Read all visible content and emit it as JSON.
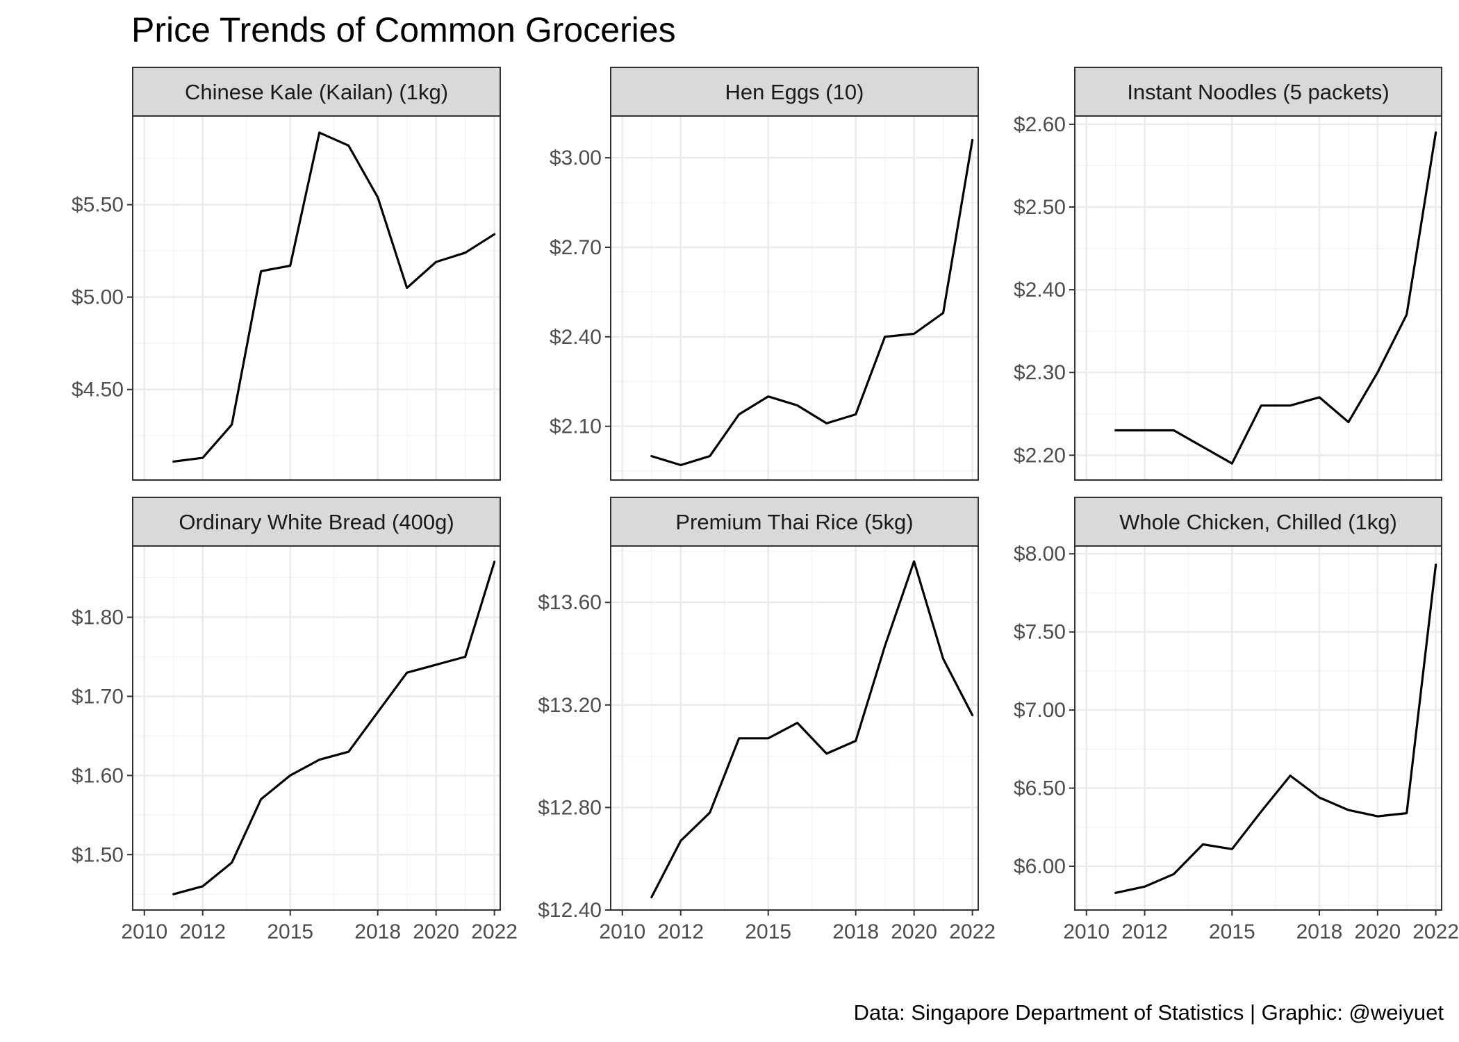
{
  "page": {
    "title": "Price Trends of Common Groceries",
    "caption": "Data: Singapore Department of Statistics | Graphic: @weiyuet"
  },
  "chart_data": {
    "type": "line",
    "facets": "3x2 grid, free y scales, shared x scale",
    "x_ticks": [
      2010,
      2012,
      2015,
      2018,
      2020,
      2022
    ],
    "x_tick_labels": [
      "2010",
      "2012",
      "2015",
      "2018",
      "2020",
      "2022"
    ],
    "xlim": [
      2009.6,
      2022.2
    ],
    "grid": true,
    "line_color": "#000000",
    "strip_color": "#d9d9d9",
    "panels": [
      {
        "name": "Chinese Kale (Kailan) (1kg)",
        "ylim": [
          4.01,
          5.98
        ],
        "y_ticks": [
          4.5,
          5.0,
          5.5
        ],
        "y_tick_labels": [
          "$4.50",
          "$5.00",
          "$5.50"
        ],
        "x": [
          2011,
          2012,
          2013,
          2014,
          2015,
          2016,
          2017,
          2018,
          2019,
          2020,
          2021,
          2022
        ],
        "y": [
          4.11,
          4.13,
          4.31,
          5.14,
          5.17,
          5.89,
          5.82,
          5.54,
          5.05,
          5.19,
          5.24,
          5.34
        ]
      },
      {
        "name": "Hen Eggs (10)",
        "ylim": [
          1.92,
          3.14
        ],
        "y_ticks": [
          2.1,
          2.4,
          2.7,
          3.0
        ],
        "y_tick_labels": [
          "$2.10",
          "$2.40",
          "$2.70",
          "$3.00"
        ],
        "x": [
          2011,
          2012,
          2013,
          2014,
          2015,
          2016,
          2017,
          2018,
          2019,
          2020,
          2021,
          2022
        ],
        "y": [
          2.0,
          1.97,
          2.0,
          2.14,
          2.2,
          2.17,
          2.11,
          2.14,
          2.4,
          2.41,
          2.48,
          3.06
        ]
      },
      {
        "name": "Instant Noodles (5 packets)",
        "ylim": [
          2.17,
          2.61
        ],
        "y_ticks": [
          2.2,
          2.3,
          2.4,
          2.5,
          2.6
        ],
        "y_tick_labels": [
          "$2.20",
          "$2.30",
          "$2.40",
          "$2.50",
          "$2.60"
        ],
        "x": [
          2011,
          2012,
          2013,
          2014,
          2015,
          2016,
          2017,
          2018,
          2019,
          2020,
          2021,
          2022
        ],
        "y": [
          2.23,
          2.23,
          2.23,
          2.21,
          2.19,
          2.26,
          2.26,
          2.27,
          2.24,
          2.3,
          2.37,
          2.59
        ]
      },
      {
        "name": "Ordinary White Bread (400g)",
        "ylim": [
          1.43,
          1.89
        ],
        "y_ticks": [
          1.5,
          1.6,
          1.7,
          1.8
        ],
        "y_tick_labels": [
          "$1.50",
          "$1.60",
          "$1.70",
          "$1.80"
        ],
        "x": [
          2011,
          2012,
          2013,
          2014,
          2015,
          2016,
          2017,
          2018,
          2019,
          2020,
          2021,
          2022
        ],
        "y": [
          1.45,
          1.46,
          1.49,
          1.57,
          1.6,
          1.62,
          1.63,
          1.68,
          1.73,
          1.74,
          1.75,
          1.87
        ]
      },
      {
        "name": "Premium Thai Rice (5kg)",
        "ylim": [
          12.4,
          13.82
        ],
        "y_ticks": [
          12.4,
          12.8,
          13.2,
          13.6
        ],
        "y_tick_labels": [
          "$12.40",
          "$12.80",
          "$13.20",
          "$13.60"
        ],
        "x": [
          2011,
          2012,
          2013,
          2014,
          2015,
          2016,
          2017,
          2018,
          2019,
          2020,
          2021,
          2022
        ],
        "y": [
          12.45,
          12.67,
          12.78,
          13.07,
          13.07,
          13.13,
          13.01,
          13.06,
          13.43,
          13.76,
          13.38,
          13.16
        ]
      },
      {
        "name": "Whole Chicken, Chilled (1kg)",
        "ylim": [
          5.72,
          8.05
        ],
        "y_ticks": [
          6.0,
          6.5,
          7.0,
          7.5,
          8.0
        ],
        "y_tick_labels": [
          "$6.00",
          "$6.50",
          "$7.00",
          "$7.50",
          "$8.00"
        ],
        "x": [
          2011,
          2012,
          2013,
          2014,
          2015,
          2016,
          2017,
          2018,
          2019,
          2020,
          2021,
          2022
        ],
        "y": [
          5.83,
          5.87,
          5.95,
          6.14,
          6.11,
          6.35,
          6.58,
          6.44,
          6.36,
          6.32,
          6.34,
          7.93
        ]
      }
    ]
  }
}
